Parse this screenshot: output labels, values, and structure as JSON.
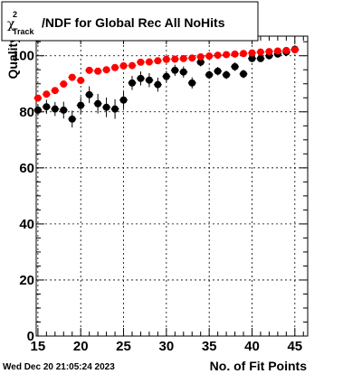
{
  "title": {
    "symbol": "χ",
    "superscript": "2",
    "subscript": "Track",
    "text": "/NDF for Global Rec All NoHits"
  },
  "timestamp": "Wed Dec 20 21:05:24 2023",
  "chart_data": {
    "type": "scatter",
    "xlabel": "No. of Fit Points",
    "ylabel": "Quality",
    "xlim": [
      14.8,
      46.5
    ],
    "ylim": [
      0,
      107
    ],
    "x_ticks": [
      "15",
      "20",
      "25",
      "30",
      "35",
      "40",
      "45"
    ],
    "y_ticks": [
      "0",
      "20",
      "40",
      "60",
      "80",
      "100"
    ],
    "grid": true,
    "series": [
      {
        "color": "#ff0000",
        "x": [
          15,
          16,
          17,
          18,
          19,
          20,
          21,
          22,
          23,
          24,
          25,
          26,
          27,
          28,
          29,
          30,
          31,
          32,
          33,
          34,
          35,
          36,
          37,
          38,
          39,
          40,
          41,
          42,
          43,
          44,
          45
        ],
        "y": [
          84.9,
          86.3,
          87.6,
          89.9,
          92.3,
          91.2,
          94.8,
          94.5,
          95.0,
          95.8,
          96.4,
          96.5,
          97.7,
          97.8,
          98.2,
          98.7,
          98.8,
          99.0,
          99.2,
          99.6,
          99.9,
          100.2,
          100.4,
          100.6,
          100.8,
          101.0,
          101.3,
          101.5,
          101.7,
          101.9,
          102.1
        ],
        "err": [
          0.5,
          0.5,
          0.5,
          0.5,
          0.5,
          0.5,
          0.5,
          0.5,
          0.5,
          0.5,
          0.5,
          0.5,
          0.5,
          0.5,
          0.5,
          0.5,
          0.5,
          0.5,
          0.5,
          0.5,
          0.5,
          0.5,
          0.5,
          0.5,
          0.5,
          0.5,
          0.5,
          0.5,
          0.5,
          0.5,
          0.5
        ]
      },
      {
        "color": "#000000",
        "x": [
          15,
          16,
          17,
          18,
          19,
          20,
          21,
          22,
          23,
          24,
          25,
          26,
          27,
          28,
          29,
          30,
          31,
          32,
          33,
          34,
          35,
          36,
          37,
          38,
          39,
          40,
          41,
          42,
          43,
          44,
          45
        ],
        "y": [
          80.6,
          81.8,
          81.0,
          80.6,
          77.4,
          82.3,
          86.1,
          82.9,
          81.6,
          81.0,
          84.2,
          90.3,
          91.9,
          91.3,
          89.7,
          92.6,
          94.8,
          94.2,
          90.3,
          97.7,
          93.2,
          94.5,
          93.2,
          96.1,
          93.5,
          99.0,
          99.0,
          100.0,
          100.6,
          101.3,
          102.3
        ],
        "err": [
          2.0,
          2.5,
          2.5,
          3.0,
          3.0,
          3.0,
          3.0,
          3.5,
          3.5,
          3.5,
          3.0,
          2.5,
          2.5,
          2.5,
          2.5,
          2.0,
          2.0,
          2.0,
          2.0,
          1.5,
          1.5,
          1.5,
          1.5,
          1.5,
          1.5,
          1.0,
          1.0,
          1.0,
          1.0,
          1.0,
          1.0
        ]
      }
    ]
  }
}
